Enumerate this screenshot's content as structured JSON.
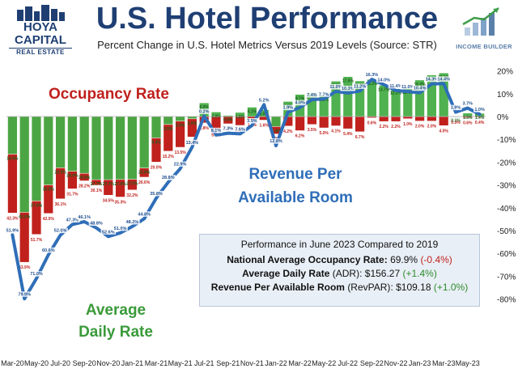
{
  "header": {
    "title": "U.S. Hotel Performance",
    "subtitle": "Percent Change in U.S. Hotel Metrics Versus 2019 Levels (Source: STR)"
  },
  "brand_left": {
    "line1": "HOYA CAPITAL",
    "line2": "REAL ESTATE"
  },
  "brand_right": {
    "name": "INCOME BUILDER"
  },
  "labels": {
    "occupancy": "Occupancy Rate",
    "adr_line1": "Average",
    "adr_line2": "Daily Rate",
    "revpar_line1": "Revenue Per",
    "revpar_line2": "Available Room"
  },
  "summary": {
    "heading": "Performance in June 2023 Compared to 2019",
    "rows": [
      {
        "label": "National Average Occupancy Rate",
        "suffix": "",
        "value": "69.9%",
        "change": "(-0.4%)",
        "sign": "neg"
      },
      {
        "label": "Average Daily Rate",
        "suffix": "(ADR)",
        "value": "$156.27",
        "change": "(+1.4%)",
        "sign": "pos"
      },
      {
        "label": "Revenue Per Available Room",
        "suffix": "(RevPAR)",
        "value": "$109.18",
        "change": "(+1.0%)",
        "sign": "pos"
      }
    ]
  },
  "colors": {
    "occupancy": "#c0211d",
    "adr": "#46ad46",
    "revpar": "#2f6eb8"
  },
  "chart_data": {
    "type": "bar",
    "categories": [
      "Mar-20",
      "Apr-20",
      "May-20",
      "Jun-20",
      "Jul-20",
      "Aug-20",
      "Sep-20",
      "Oct-20",
      "Nov-20",
      "Dec-20",
      "Jan-21",
      "Feb-21",
      "Mar-21",
      "Apr-21",
      "May-21",
      "Jun-21",
      "Jul-21",
      "Aug-21",
      "Sep-21",
      "Oct-21",
      "Nov-21",
      "Dec-21",
      "Jan-22",
      "Feb-22",
      "Mar-22",
      "Apr-22",
      "May-22",
      "Jun-22",
      "Jul-22",
      "Aug-22",
      "Sep-22",
      "Oct-22",
      "Nov-22",
      "Dec-22",
      "Jan-23",
      "Feb-23",
      "Mar-23",
      "Apr-23",
      "May-23",
      "Jun-23"
    ],
    "x_tick_labels": [
      "Mar-20",
      "May-20",
      "Jul-20",
      "Sep-20",
      "Nov-20",
      "Jan-21",
      "Mar-21",
      "May-21",
      "Jul-21",
      "Sep-21",
      "Nov-21",
      "Jan-22",
      "Mar-22",
      "May-22",
      "Jul-22",
      "Sep-22",
      "Nov-22",
      "Jan-23",
      "Mar-23",
      "May-23"
    ],
    "ylim": [
      -80,
      20
    ],
    "y_ticks": [
      "20%",
      "10%",
      "0%",
      "-10%",
      "-20%",
      "-30%",
      "-40%",
      "-50%",
      "-60%",
      "-70%",
      "-80%"
    ],
    "grid": false,
    "series": [
      {
        "name": "Occupancy Rate",
        "values": [
          -42.3,
          -63.9,
          -51.7,
          -42.5,
          -36.1,
          -31.7,
          -28.2,
          -30.1,
          -34.5,
          -35.3,
          -32.2,
          -26.6,
          -20.0,
          -15.2,
          -13.5,
          -9.0,
          -2.8,
          -5.9,
          -3.2,
          -3.9,
          -1.4,
          -1.6,
          -7.7,
          -4.2,
          -6.2,
          -3.5,
          -5.0,
          -4.1,
          -5.4,
          -6.7,
          -0.6,
          -2.2,
          -2.2,
          -1.0,
          -2.0,
          -2.0,
          -4.0,
          -0.3,
          -0.6,
          -0.4
        ],
        "labels": [
          "42.3%",
          "63.9%",
          "51.7%",
          "42.5%",
          "36.1%",
          "31.7%",
          "28.2%",
          "30.1%",
          "34.5%",
          "35.3%",
          "32.2%",
          "26.6%",
          "20.0%",
          "15.2%",
          "13.5%",
          "9.0%",
          "2.8%",
          "5.9%",
          "3.2%",
          "3.9%",
          "1.4%",
          "1.6%",
          "7.7%",
          "4.2%",
          "6.2%",
          "3.5%",
          "5.0%",
          "4.1%",
          "5.4%",
          "6.7%",
          "0.6%",
          "2.2%",
          "2.2%",
          "1.0%",
          "2.0%",
          "2.0%",
          "4.0%",
          "0.3%",
          "0.6%",
          "0.4%"
        ]
      },
      {
        "name": "Average Daily Rate",
        "values": [
          -16.5,
          -42.0,
          -37.0,
          -30.0,
          -22.5,
          -24.0,
          -24.9,
          -27.7,
          -27.7,
          -27.6,
          -27.5,
          -22.6,
          -9.4,
          -3.5,
          -2.0,
          -1.0,
          6.0,
          2.0,
          0.5,
          1.8,
          4.1,
          3.0,
          -4.4,
          6.6,
          9.7,
          10.5,
          9.3,
          15.5,
          17.5,
          15.6,
          16.3,
          13.7,
          12.2,
          12.4,
          16.0,
          18.2,
          19.1,
          0.1,
          1.5,
          1.4
        ],
        "labels": [
          "16.5%",
          "42.0%",
          "37.0%",
          "30.0%",
          "22.5%",
          "24.0%",
          "24.9%",
          "27.7%",
          "27.7%",
          "27.6%",
          "27.5%",
          "22.6%",
          "9.4%",
          "3.5%",
          "2.0%",
          "1.0%",
          "6.0%",
          "2.0%",
          "0.5%",
          "1.8%",
          "4.1%",
          "3.0%",
          "4.4%",
          "6.6%",
          "9.7%",
          "10.5%",
          "9.3%",
          "15.5%",
          "17.5%",
          "15.6%",
          "16.3%",
          "13.7%",
          "12.2%",
          "12.4%",
          "16.0%",
          "18.2%",
          "19.1%",
          "0.1%",
          "1.5%",
          "1.4%"
        ]
      },
      {
        "name": "Revenue Per Available Room",
        "values": [
          -51.9,
          -79.9,
          -71.0,
          -60.6,
          -52.0,
          -47.3,
          -46.1,
          -48.8,
          -52.6,
          -51.0,
          -48.2,
          -44.8,
          -35.8,
          -28.8,
          -22.9,
          -13.4,
          0.2,
          -8.1,
          -7.3,
          -7.6,
          -3.9,
          5.2,
          -12.8,
          1.9,
          4.0,
          7.4,
          7.7,
          11.0,
          10.3,
          11.2,
          16.3,
          14.0,
          11.4,
          11.0,
          10.4,
          14.3,
          14.4,
          1.9,
          3.7,
          1.0
        ],
        "labels": [
          "51.9%",
          "79.9%",
          "71.0%",
          "60.6%",
          "52.0%",
          "47.3%",
          "46.1%",
          "48.8%",
          "52.6%",
          "51.0%",
          "48.2%",
          "44.8%",
          "35.8%",
          "28.8%",
          "22.9%",
          "13.4%",
          "0.2%",
          "8.1%",
          "7.3%",
          "7.6%",
          "3.9%",
          "5.2%",
          "12.8%",
          "1.9%",
          "4.0%",
          "7.4%",
          "7.7%",
          "11.0%",
          "10.3%",
          "11.2%",
          "16.3%",
          "14.0%",
          "11.4%",
          "11.0%",
          "10.4%",
          "14.3%",
          "14.4%",
          "1.9%",
          "3.7%",
          "1.0%"
        ]
      }
    ]
  }
}
